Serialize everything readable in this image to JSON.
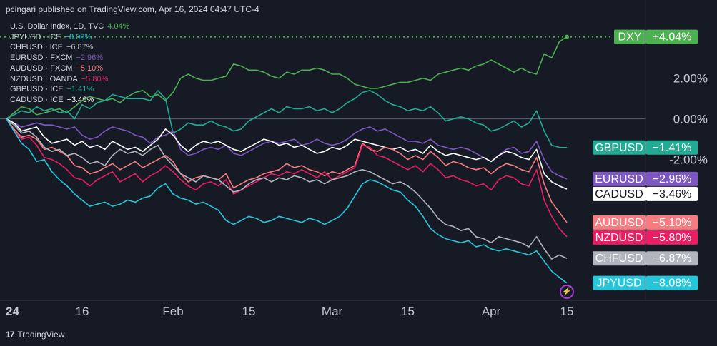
{
  "header": {
    "text": "pcingari published on TradingView.com, Apr 16, 2024 04:47 UTC-4"
  },
  "legend": [
    {
      "label": "U.S. Dollar Index, 1D, TVC",
      "value": "4.04%",
      "color": "#4caf50"
    },
    {
      "label": "JPYUSD · ICE",
      "value": "−8.08%",
      "color": "#26c6da"
    },
    {
      "label": "CHFUSD · ICE",
      "value": "−6.87%",
      "color": "#b2b5be"
    },
    {
      "label": "EURUSD · FXCM",
      "value": "−2.96%",
      "color": "#7e57c2"
    },
    {
      "label": "AUDUSD · FXCM",
      "value": "−5.10%",
      "color": "#f77c80"
    },
    {
      "label": "NZDUSD · OANDA",
      "value": "−5.80%",
      "color": "#e91e63"
    },
    {
      "label": "GBPUSD · ICE",
      "value": "−1.41%",
      "color": "#22ab94"
    },
    {
      "label": "CADUSD · ICE",
      "value": "−3.46%",
      "color": "#ffffff"
    }
  ],
  "footer": {
    "brand": "TradingView"
  },
  "chart_data": {
    "type": "line",
    "x": [
      "2024-01-02",
      "2024-01-03",
      "2024-01-04",
      "2024-01-05",
      "2024-01-08",
      "2024-01-09",
      "2024-01-10",
      "2024-01-11",
      "2024-01-12",
      "2024-01-15",
      "2024-01-16",
      "2024-01-17",
      "2024-01-18",
      "2024-01-19",
      "2024-01-22",
      "2024-01-23",
      "2024-01-24",
      "2024-01-25",
      "2024-01-26",
      "2024-01-29",
      "2024-01-30",
      "2024-01-31",
      "2024-02-01",
      "2024-02-02",
      "2024-02-05",
      "2024-02-06",
      "2024-02-07",
      "2024-02-08",
      "2024-02-09",
      "2024-02-12",
      "2024-02-13",
      "2024-02-14",
      "2024-02-15",
      "2024-02-16",
      "2024-02-19",
      "2024-02-20",
      "2024-02-21",
      "2024-02-22",
      "2024-02-23",
      "2024-02-26",
      "2024-02-27",
      "2024-02-28",
      "2024-02-29",
      "2024-03-01",
      "2024-03-04",
      "2024-03-05",
      "2024-03-06",
      "2024-03-07",
      "2024-03-08",
      "2024-03-11",
      "2024-03-12",
      "2024-03-13",
      "2024-03-14",
      "2024-03-15",
      "2024-03-18",
      "2024-03-19",
      "2024-03-20",
      "2024-03-21",
      "2024-03-22",
      "2024-03-25",
      "2024-03-26",
      "2024-03-27",
      "2024-03-28",
      "2024-03-29",
      "2024-04-01",
      "2024-04-02",
      "2024-04-03",
      "2024-04-04",
      "2024-04-05",
      "2024-04-08",
      "2024-04-09",
      "2024-04-10",
      "2024-04-11",
      "2024-04-12",
      "2024-04-15"
    ],
    "x_ticks": [
      "24",
      "16",
      "Feb",
      "15",
      "Mar",
      "15",
      "Apr",
      "15"
    ],
    "x_tick_dates": [
      "2024-01-02",
      "2024-01-16",
      "2024-02-01",
      "2024-02-15",
      "2024-03-01",
      "2024-03-15",
      "2024-04-01",
      "2024-04-15"
    ],
    "y_ticks": [
      "2.00%",
      "0.00%",
      "-2.00%"
    ],
    "y_tick_values": [
      2.0,
      0.0,
      -2.0
    ],
    "ylim": [
      -8.9,
      4.8
    ],
    "grid": false,
    "series": [
      {
        "name": "DXY",
        "color": "#4caf50",
        "final": "+4.04%",
        "values": [
          0,
          0.3,
          0.6,
          0.5,
          0.2,
          0.3,
          0.4,
          0.5,
          0.3,
          0.6,
          0.9,
          1.1,
          1.0,
          0.9,
          1.0,
          0.8,
          1.1,
          1.3,
          1.4,
          1.1,
          1.2,
          0.9,
          1.3,
          2.0,
          2.2,
          2.0,
          1.9,
          1.9,
          2.0,
          2.1,
          2.7,
          2.6,
          2.4,
          2.4,
          2.3,
          2.1,
          2.0,
          2.3,
          2.2,
          2.4,
          2.4,
          2.5,
          2.4,
          2.2,
          2.2,
          2.0,
          1.7,
          1.6,
          1.5,
          1.5,
          1.6,
          1.7,
          1.8,
          1.8,
          1.9,
          2.0,
          1.9,
          2.2,
          2.3,
          2.4,
          2.5,
          2.4,
          2.6,
          2.7,
          2.9,
          2.7,
          2.5,
          2.3,
          2.5,
          2.3,
          2.2,
          3.2,
          3.0,
          3.8,
          4.04
        ]
      },
      {
        "name": "GBPUSD",
        "color": "#22ab94",
        "final": "−1.41%",
        "values": [
          0,
          0.2,
          0.4,
          0.3,
          0.6,
          0.4,
          0.5,
          0.3,
          0.4,
          0.0,
          0.7,
          0.5,
          0.8,
          0.9,
          1.2,
          1.1,
          1.0,
          1.0,
          1.0,
          0.9,
          1.4,
          1.0,
          -0.7,
          -0.5,
          -0.2,
          -0.3,
          -0.3,
          -0.1,
          -0.3,
          -0.4,
          -0.6,
          -0.5,
          -0.1,
          0.1,
          0.3,
          0.5,
          0.3,
          0.6,
          0.5,
          0.5,
          0.6,
          0.4,
          0.5,
          0.3,
          0.5,
          0.8,
          1.0,
          1.3,
          1.4,
          1.2,
          0.9,
          0.7,
          0.6,
          0.4,
          0.5,
          0.4,
          0.6,
          0.3,
          -0.1,
          0.0,
          0.1,
          0.0,
          -0.2,
          -0.3,
          -0.6,
          -0.5,
          -0.3,
          -0.1,
          -0.4,
          -0.2,
          0.4,
          -0.6,
          -1.3,
          -1.4,
          -1.41
        ]
      },
      {
        "name": "EURUSD",
        "color": "#7e57c2",
        "final": "−2.96%",
        "values": [
          0,
          -0.2,
          -0.4,
          -0.3,
          -0.2,
          -0.3,
          -0.3,
          -0.4,
          -0.5,
          -0.4,
          -0.8,
          -1.0,
          -0.9,
          -0.6,
          -0.4,
          -0.5,
          -0.6,
          -0.8,
          -0.9,
          -1.2,
          -0.9,
          -0.8,
          -0.6,
          -1.5,
          -1.8,
          -1.7,
          -1.5,
          -1.4,
          -1.5,
          -1.3,
          -1.7,
          -1.8,
          -1.6,
          -1.4,
          -1.2,
          -1.1,
          -1.2,
          -1.1,
          -1.0,
          -1.3,
          -1.2,
          -1.0,
          -1.2,
          -1.3,
          -1.2,
          -1.0,
          -0.7,
          -0.5,
          -0.4,
          -0.6,
          -0.5,
          -0.7,
          -0.9,
          -1.1,
          -1.1,
          -1.2,
          -1.0,
          -1.3,
          -1.4,
          -1.5,
          -1.4,
          -1.5,
          -1.7,
          -1.9,
          -2.1,
          -1.8,
          -1.5,
          -1.4,
          -1.7,
          -1.6,
          -1.1,
          -2.0,
          -2.6,
          -2.8,
          -2.96
        ]
      },
      {
        "name": "CADUSD",
        "color": "#ffffff",
        "final": "−3.46%",
        "values": [
          0,
          -0.2,
          -0.6,
          -0.5,
          -0.4,
          -0.9,
          -1.2,
          -1.1,
          -1.0,
          -1.3,
          -1.1,
          -1.4,
          -1.3,
          -1.5,
          -1.1,
          -1.3,
          -1.5,
          -1.4,
          -1.6,
          -1.3,
          -1.0,
          -0.5,
          -0.8,
          -1.3,
          -1.6,
          -1.3,
          -1.1,
          -1.2,
          -1.1,
          -1.3,
          -1.5,
          -1.6,
          -1.4,
          -1.2,
          -1.0,
          -1.1,
          -1.3,
          -1.2,
          -1.4,
          -1.3,
          -1.5,
          -1.7,
          -1.6,
          -1.4,
          -1.5,
          -1.3,
          -1.0,
          -1.1,
          -1.2,
          -1.3,
          -1.4,
          -1.5,
          -1.4,
          -1.6,
          -1.5,
          -1.7,
          -1.3,
          -1.6,
          -1.8,
          -1.7,
          -1.8,
          -1.9,
          -2.0,
          -1.9,
          -2.1,
          -1.8,
          -1.6,
          -1.7,
          -1.9,
          -2.0,
          -1.5,
          -2.7,
          -3.1,
          -3.3,
          -3.46
        ]
      },
      {
        "name": "AUDUSD",
        "color": "#f77c80",
        "final": "−5.10%",
        "values": [
          0,
          -0.5,
          -0.9,
          -0.8,
          -1.0,
          -1.5,
          -1.4,
          -1.6,
          -1.8,
          -2.3,
          -2.4,
          -2.7,
          -2.6,
          -2.4,
          -2.2,
          -2.5,
          -2.3,
          -2.1,
          -2.4,
          -2.2,
          -2.0,
          -1.8,
          -2.1,
          -2.7,
          -3.1,
          -2.9,
          -2.8,
          -2.9,
          -3.0,
          -2.7,
          -3.4,
          -3.2,
          -3.0,
          -2.9,
          -2.7,
          -2.6,
          -2.5,
          -2.2,
          -2.4,
          -2.3,
          -2.5,
          -2.6,
          -2.8,
          -2.6,
          -2.7,
          -2.5,
          -2.3,
          -1.2,
          -1.5,
          -1.6,
          -1.4,
          -1.5,
          -1.7,
          -2.0,
          -1.8,
          -2.0,
          -1.6,
          -1.9,
          -2.3,
          -2.1,
          -2.2,
          -2.4,
          -2.5,
          -2.4,
          -2.7,
          -2.4,
          -2.2,
          -2.3,
          -2.5,
          -2.6,
          -1.9,
          -3.2,
          -4.1,
          -4.6,
          -5.1
        ]
      },
      {
        "name": "NZDUSD",
        "color": "#e91e63",
        "final": "−5.80%",
        "values": [
          0,
          -0.6,
          -1.0,
          -0.9,
          -1.3,
          -1.9,
          -2.0,
          -2.2,
          -2.5,
          -2.9,
          -3.0,
          -3.3,
          -3.0,
          -2.8,
          -2.6,
          -3.1,
          -2.9,
          -2.7,
          -3.1,
          -2.8,
          -2.6,
          -2.3,
          -2.6,
          -3.0,
          -3.3,
          -3.5,
          -3.2,
          -3.1,
          -3.3,
          -3.0,
          -3.7,
          -3.5,
          -3.3,
          -3.1,
          -2.9,
          -2.7,
          -2.8,
          -2.6,
          -2.7,
          -2.5,
          -2.7,
          -2.9,
          -2.6,
          -3.0,
          -2.8,
          -2.6,
          -2.4,
          -1.3,
          -1.4,
          -1.8,
          -1.9,
          -2.1,
          -2.3,
          -2.5,
          -2.3,
          -2.6,
          -2.2,
          -2.5,
          -2.9,
          -2.8,
          -3.0,
          -3.1,
          -3.3,
          -3.2,
          -3.5,
          -3.0,
          -2.8,
          -2.9,
          -3.2,
          -3.3,
          -2.5,
          -4.0,
          -4.8,
          -5.4,
          -5.8
        ]
      },
      {
        "name": "CHFUSD",
        "color": "#b2b5be",
        "final": "−6.87%",
        "values": [
          0,
          -0.3,
          -0.7,
          -0.6,
          -0.9,
          -1.4,
          -1.6,
          -1.5,
          -1.8,
          -1.7,
          -1.9,
          -2.2,
          -2.1,
          -2.3,
          -1.8,
          -1.5,
          -1.7,
          -1.6,
          -1.8,
          -1.5,
          -1.3,
          -1.9,
          -2.3,
          -2.7,
          -2.9,
          -3.1,
          -2.8,
          -2.9,
          -3.0,
          -3.3,
          -3.6,
          -3.5,
          -3.2,
          -3.0,
          -2.9,
          -3.1,
          -2.9,
          -3.0,
          -2.8,
          -2.9,
          -3.1,
          -3.0,
          -3.2,
          -3.0,
          -2.9,
          -2.8,
          -2.6,
          -2.5,
          -2.6,
          -2.8,
          -3.0,
          -3.2,
          -3.1,
          -3.3,
          -3.6,
          -4.0,
          -4.4,
          -4.9,
          -5.2,
          -5.3,
          -5.5,
          -5.4,
          -5.8,
          -5.9,
          -6.1,
          -5.8,
          -5.9,
          -6.0,
          -6.1,
          -6.3,
          -5.8,
          -6.4,
          -6.9,
          -6.7,
          -6.87
        ]
      },
      {
        "name": "JPYUSD",
        "color": "#26c6da",
        "final": "−8.08%",
        "values": [
          0,
          -0.6,
          -1.2,
          -1.5,
          -2.1,
          -2.0,
          -2.6,
          -3.0,
          -3.3,
          -3.7,
          -4.0,
          -4.3,
          -4.2,
          -4.1,
          -4.3,
          -4.2,
          -4.0,
          -4.1,
          -3.9,
          -3.8,
          -3.4,
          -3.2,
          -3.7,
          -3.9,
          -4.0,
          -4.2,
          -4.1,
          -4.3,
          -4.5,
          -5.0,
          -5.2,
          -5.0,
          -4.8,
          -4.9,
          -5.1,
          -5.0,
          -4.8,
          -4.9,
          -5.0,
          -5.1,
          -4.9,
          -5.0,
          -5.2,
          -5.0,
          -4.8,
          -4.4,
          -3.8,
          -3.2,
          -3.0,
          -3.1,
          -3.3,
          -3.5,
          -3.6,
          -4.0,
          -4.3,
          -4.8,
          -5.4,
          -5.7,
          -5.9,
          -6.0,
          -6.1,
          -6.0,
          -6.3,
          -6.2,
          -6.4,
          -6.5,
          -6.4,
          -6.5,
          -6.6,
          -6.7,
          -6.5,
          -7.0,
          -7.5,
          -7.8,
          -8.08
        ]
      }
    ]
  }
}
